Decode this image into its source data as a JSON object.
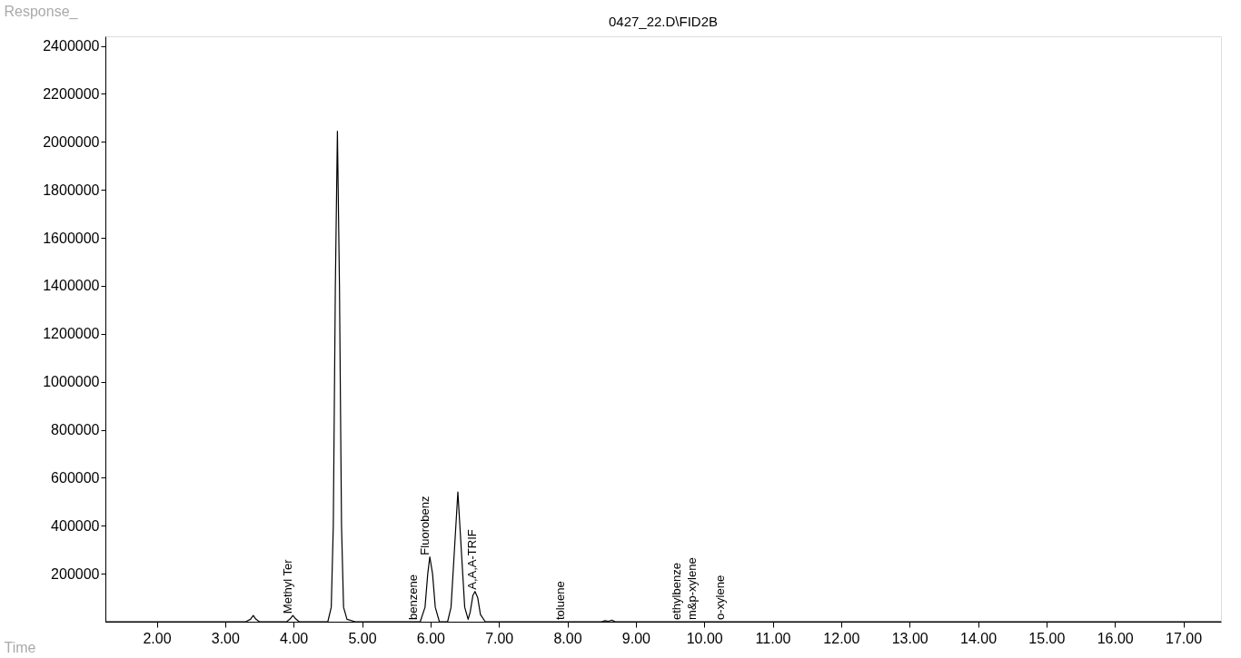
{
  "chart_data": {
    "type": "line",
    "title": "0427_22.D\\FID2B",
    "xlabel": "Time",
    "ylabel": "Response_",
    "series": [
      {
        "color": "#000000",
        "x": [
          1.25,
          2.0,
          3.0,
          3.3,
          3.37,
          3.41,
          3.45,
          3.5,
          3.9,
          3.95,
          3.99,
          4.03,
          4.08,
          4.5,
          4.55,
          4.58,
          4.61,
          4.64,
          4.67,
          4.7,
          4.73,
          4.78,
          4.9,
          5.7,
          5.85,
          5.92,
          5.96,
          5.99,
          6.03,
          6.07,
          6.13,
          6.25,
          6.3,
          6.35,
          6.4,
          6.45,
          6.5,
          6.55,
          6.58,
          6.62,
          6.65,
          6.69,
          6.73,
          6.8,
          8.5,
          8.55,
          8.6,
          8.65,
          8.7,
          17.55
        ],
        "values": [
          0,
          0,
          0,
          0,
          10000,
          26000,
          10000,
          0,
          0,
          12000,
          26000,
          12000,
          0,
          0,
          60000,
          400000,
          1400000,
          2044000,
          1400000,
          400000,
          60000,
          10000,
          0,
          0,
          0,
          60000,
          200000,
          270000,
          200000,
          60000,
          0,
          0,
          60000,
          300000,
          541000,
          300000,
          60000,
          10000,
          40000,
          110000,
          126000,
          100000,
          30000,
          0,
          0,
          4000,
          2000,
          6000,
          0,
          0
        ]
      }
    ],
    "xlim": [
      1.25,
      17.55
    ],
    "ylim": [
      0,
      2440000
    ],
    "xticks": [
      {
        "value": 2,
        "label": "2.00"
      },
      {
        "value": 3,
        "label": "3.00"
      },
      {
        "value": 4,
        "label": "4.00"
      },
      {
        "value": 5,
        "label": "5.00"
      },
      {
        "value": 6,
        "label": "6.00"
      },
      {
        "value": 7,
        "label": "7.00"
      },
      {
        "value": 8,
        "label": "8.00"
      },
      {
        "value": 9,
        "label": "9.00"
      },
      {
        "value": 10,
        "label": "10.00"
      },
      {
        "value": 11,
        "label": "11.00"
      },
      {
        "value": 12,
        "label": "12.00"
      },
      {
        "value": 13,
        "label": "13.00"
      },
      {
        "value": 14,
        "label": "14.00"
      },
      {
        "value": 15,
        "label": "15.00"
      },
      {
        "value": 16,
        "label": "16.00"
      },
      {
        "value": 17,
        "label": "17.00"
      }
    ],
    "yticks": [
      200000,
      400000,
      600000,
      800000,
      1000000,
      1200000,
      1400000,
      1600000,
      1800000,
      2000000,
      2200000,
      2400000
    ],
    "annotations": [
      {
        "text": "Methyl Ter",
        "x": 3.99,
        "y": 26000
      },
      {
        "text": "benzene",
        "x": 5.82,
        "y": 0
      },
      {
        "text": "Fluorobenz",
        "x": 5.99,
        "y": 270000
      },
      {
        "text": "A,A,A-TRIF",
        "x": 6.68,
        "y": 126000
      },
      {
        "text": "toluene",
        "x": 7.96,
        "y": 0
      },
      {
        "text": "ethylbenze",
        "x": 9.66,
        "y": 0
      },
      {
        "text": "m&p-xylene",
        "x": 9.89,
        "y": 0
      },
      {
        "text": "o-xylene",
        "x": 10.3,
        "y": 0
      }
    ],
    "grid": false,
    "marker": "none",
    "line_style": "solid"
  }
}
